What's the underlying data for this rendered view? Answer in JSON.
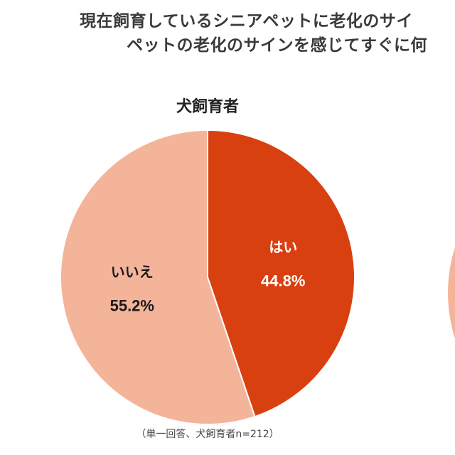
{
  "header": {
    "title_line_1": "現在飼育しているシニアペットに老化のサイ",
    "title_line_2": "ペットの老化のサインを感じてすぐに何"
  },
  "chart_data": {
    "type": "pie",
    "title": "犬飼育者",
    "start_angle_deg": 0,
    "direction": "clockwise",
    "slices": [
      {
        "label": "はい",
        "value": 44.8,
        "value_label": "44.8%",
        "color": "#D9400F",
        "text_color": "#ffffff"
      },
      {
        "label": "いいえ",
        "value": 55.2,
        "value_label": "55.2%",
        "color": "#F4B49A",
        "text_color": "#1a1a1a"
      }
    ],
    "note": "（単一回答、犬飼育者n=212）"
  },
  "colors": {
    "yes": "#D9400F",
    "no": "#F4B49A",
    "partial_chart": "#F4B49A"
  }
}
